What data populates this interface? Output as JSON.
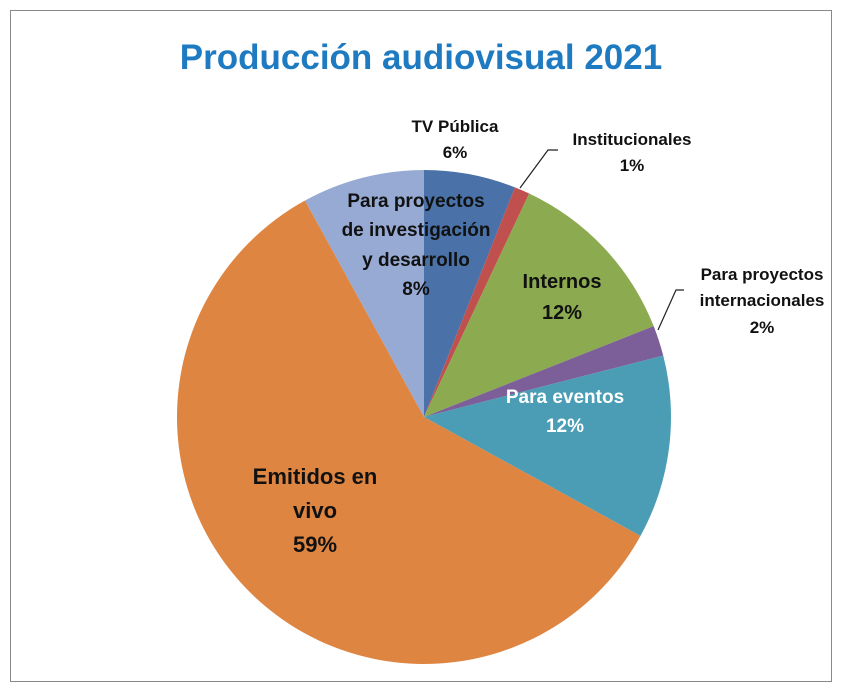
{
  "chart_data": {
    "type": "pie",
    "title": "Producción audiovisual 2021",
    "categories": [
      "TV Pública",
      "Institucionales",
      "Internos",
      "Para proyectos internacionales",
      "Para eventos",
      "Emitidos en vivo",
      "Para proyectos de investigación y desarrollo"
    ],
    "values": [
      6,
      1,
      12,
      2,
      12,
      59,
      8
    ],
    "value_labels": [
      "6%",
      "1%",
      "12%",
      "2%",
      "12%",
      "59%",
      "8%"
    ],
    "colors": [
      "#4a72a8",
      "#c0504d",
      "#8caa4f",
      "#7c5f98",
      "#4a9db4",
      "#de8542",
      "#97aad3"
    ]
  }
}
